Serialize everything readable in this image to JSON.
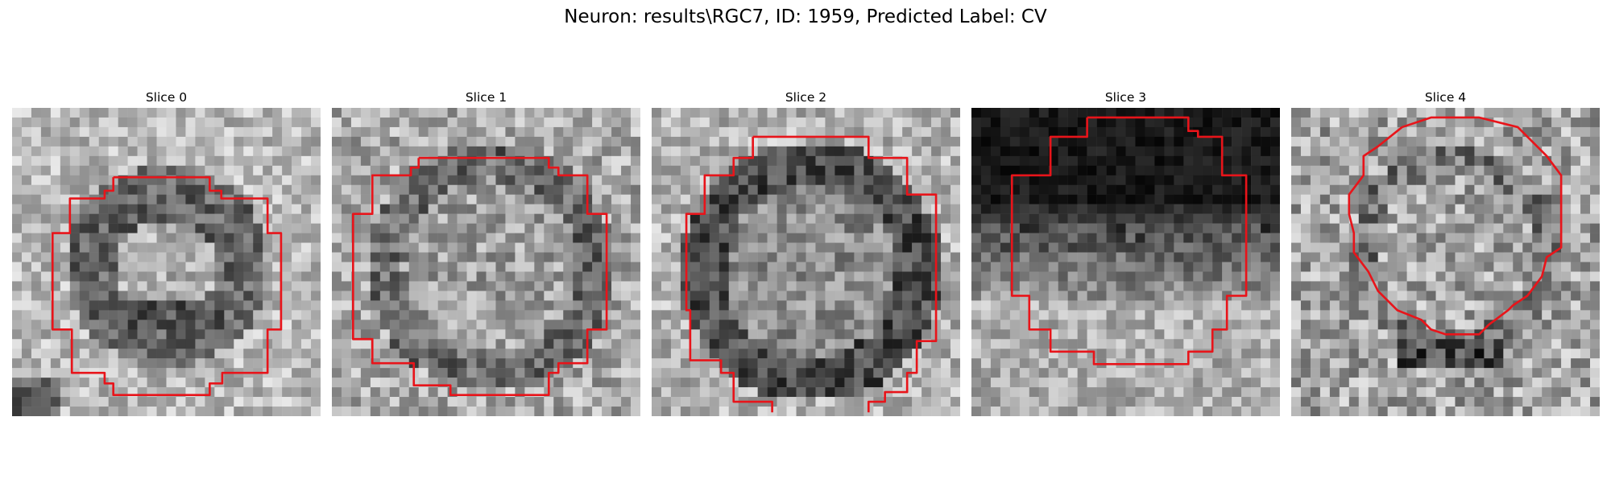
{
  "figure": {
    "title": "Neuron: results\\RGC7, ID: 1959, Predicted Label: CV",
    "contour_color": "#e8141a"
  },
  "slices": [
    {
      "title": "Slice 0"
    },
    {
      "title": "Slice 1"
    },
    {
      "title": "Slice 2"
    },
    {
      "title": "Slice 3"
    },
    {
      "title": "Slice 4"
    }
  ]
}
